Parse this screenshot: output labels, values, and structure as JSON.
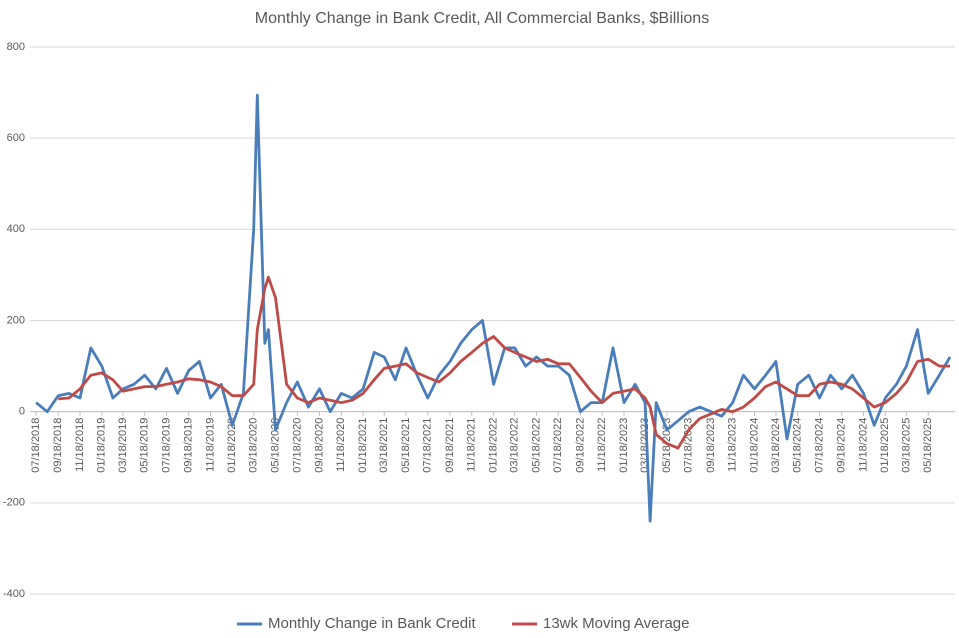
{
  "chart_data": {
    "type": "line",
    "title": "Monthly Change in Bank Credit, All Commercial Banks, $Billions",
    "x": [
      "07/18/2018",
      "08/18/2018",
      "09/18/2018",
      "10/18/2018",
      "11/18/2018",
      "12/18/2018",
      "01/18/2019",
      "02/18/2019",
      "03/18/2019",
      "04/18/2019",
      "05/18/2019",
      "06/18/2019",
      "07/18/2019",
      "08/18/2019",
      "09/18/2019",
      "10/18/2019",
      "11/18/2019",
      "12/18/2019",
      "01/18/2020",
      "02/18/2020",
      "03/18/2020",
      "03/28/2020",
      "04/18/2020",
      "04/28/2020",
      "05/18/2020",
      "06/18/2020",
      "07/18/2020",
      "08/18/2020",
      "09/18/2020",
      "10/18/2020",
      "11/18/2020",
      "12/18/2020",
      "01/18/2021",
      "02/18/2021",
      "03/18/2021",
      "04/18/2021",
      "05/18/2021",
      "06/18/2021",
      "07/18/2021",
      "08/18/2021",
      "09/18/2021",
      "10/18/2021",
      "11/18/2021",
      "12/18/2021",
      "01/18/2022",
      "02/18/2022",
      "03/18/2022",
      "04/18/2022",
      "05/18/2022",
      "06/18/2022",
      "07/18/2022",
      "08/18/2022",
      "09/18/2022",
      "10/18/2022",
      "11/18/2022",
      "12/18/2022",
      "01/18/2023",
      "02/18/2023",
      "03/18/2023",
      "04/01/2023",
      "04/18/2023",
      "05/18/2023",
      "06/18/2023",
      "07/18/2023",
      "08/18/2023",
      "09/18/2023",
      "10/18/2023",
      "11/18/2023",
      "12/18/2023",
      "01/18/2024",
      "02/18/2024",
      "03/18/2024",
      "04/18/2024",
      "05/18/2024",
      "06/18/2024",
      "07/18/2024",
      "08/18/2024",
      "09/18/2024",
      "10/18/2024",
      "11/18/2024",
      "12/18/2024",
      "01/18/2025",
      "02/18/2025",
      "03/18/2025",
      "04/18/2025",
      "05/18/2025",
      "06/18/2025",
      "07/18/2025"
    ],
    "series": [
      {
        "name": "Monthly Change in Bank Credit",
        "color": "#4a7ebb",
        "values": [
          20,
          0,
          35,
          40,
          30,
          140,
          100,
          30,
          50,
          60,
          80,
          50,
          95,
          40,
          90,
          110,
          30,
          60,
          -30,
          40,
          400,
          694,
          150,
          180,
          -40,
          20,
          65,
          10,
          50,
          0,
          40,
          30,
          50,
          130,
          120,
          70,
          140,
          80,
          30,
          80,
          110,
          150,
          180,
          200,
          60,
          140,
          140,
          100,
          120,
          100,
          100,
          80,
          0,
          20,
          20,
          140,
          20,
          60,
          20,
          -240,
          20,
          -40,
          -20,
          0,
          10,
          0,
          -10,
          20,
          80,
          50,
          80,
          110,
          -60,
          60,
          80,
          30,
          80,
          50,
          80,
          40,
          -30,
          30,
          60,
          100,
          180,
          40,
          80,
          120
        ]
      },
      {
        "name": "13wk Moving Average",
        "color": "#be4b48",
        "values": [
          null,
          null,
          28,
          30,
          50,
          80,
          85,
          70,
          45,
          50,
          55,
          55,
          60,
          65,
          72,
          70,
          65,
          55,
          35,
          35,
          60,
          180,
          270,
          295,
          250,
          60,
          30,
          20,
          30,
          25,
          20,
          25,
          40,
          70,
          95,
          100,
          105,
          85,
          75,
          65,
          85,
          110,
          130,
          150,
          165,
          140,
          130,
          120,
          110,
          115,
          105,
          105,
          75,
          45,
          20,
          40,
          45,
          50,
          30,
          10,
          -50,
          -70,
          -80,
          -40,
          -15,
          -5,
          5,
          0,
          10,
          30,
          55,
          65,
          50,
          35,
          35,
          60,
          65,
          60,
          50,
          30,
          10,
          20,
          40,
          65,
          110,
          115,
          100,
          100
        ]
      }
    ],
    "xlim": [
      "07/01/2018",
      "08/01/2025"
    ],
    "xticks": [
      "07/18/2018",
      "09/18/2018",
      "11/18/2018",
      "01/18/2019",
      "03/18/2019",
      "05/18/2019",
      "07/18/2019",
      "09/18/2019",
      "11/18/2019",
      "01/18/2020",
      "03/18/2020",
      "05/18/2020",
      "07/18/2020",
      "09/18/2020",
      "11/18/2020",
      "01/18/2021",
      "03/18/2021",
      "05/18/2021",
      "07/18/2021",
      "09/18/2021",
      "11/18/2021",
      "01/18/2022",
      "03/18/2022",
      "05/18/2022",
      "07/18/2022",
      "09/18/2022",
      "11/18/2022",
      "01/18/2023",
      "03/18/2023",
      "05/18/2023",
      "07/18/2023",
      "09/18/2023",
      "11/18/2023",
      "01/18/2024",
      "03/18/2024",
      "05/18/2024",
      "07/18/2024",
      "09/18/2024",
      "11/18/2024",
      "01/18/2025",
      "03/18/2025",
      "05/18/2025"
    ],
    "ylim": [
      -400,
      800
    ],
    "yticks": [
      -400,
      -200,
      0,
      200,
      400,
      600,
      800
    ],
    "grid": true,
    "legend": "bottom"
  }
}
